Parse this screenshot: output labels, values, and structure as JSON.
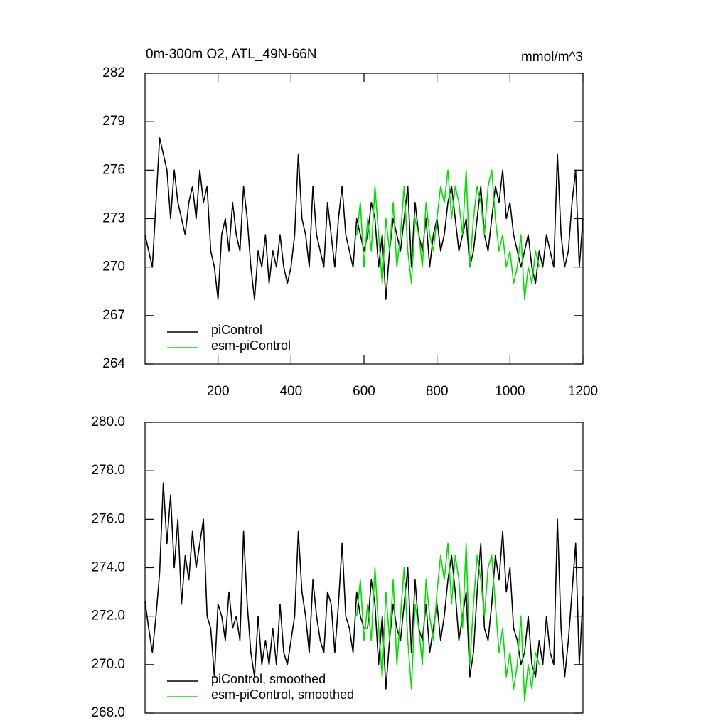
{
  "chart_data": [
    {
      "type": "line",
      "title": "0m-300m O2, ATL_49N-66N",
      "units": "mmol/m^3",
      "xlim": [
        0,
        1200
      ],
      "xticks": [
        200,
        400,
        600,
        800,
        1000,
        1200
      ],
      "ylim": [
        264,
        282
      ],
      "yticks": [
        264,
        267,
        270,
        273,
        276,
        279,
        282
      ],
      "legend": "lower left",
      "series": [
        {
          "name": "piControl",
          "color": "#000000",
          "x": [
            0,
            10,
            20,
            30,
            40,
            50,
            60,
            70,
            80,
            90,
            100,
            110,
            120,
            130,
            140,
            150,
            160,
            170,
            180,
            190,
            200,
            210,
            220,
            230,
            240,
            250,
            260,
            270,
            280,
            290,
            300,
            310,
            320,
            330,
            340,
            350,
            360,
            370,
            380,
            390,
            400,
            410,
            420,
            430,
            440,
            450,
            460,
            470,
            480,
            490,
            500,
            510,
            520,
            530,
            540,
            550,
            560,
            570,
            580,
            590,
            600,
            610,
            620,
            630,
            640,
            650,
            660,
            670,
            680,
            690,
            700,
            710,
            720,
            730,
            740,
            750,
            760,
            770,
            780,
            790,
            800,
            810,
            820,
            830,
            840,
            850,
            860,
            870,
            880,
            890,
            900,
            910,
            920,
            930,
            940,
            950,
            960,
            970,
            980,
            990,
            1000,
            1010,
            1020,
            1030,
            1040,
            1050,
            1060,
            1070,
            1080,
            1090,
            1100,
            1110,
            1120,
            1130,
            1140,
            1150,
            1160,
            1170,
            1180,
            1190,
            1200
          ],
          "values": [
            272,
            271,
            270,
            274,
            278,
            277,
            276,
            273,
            276,
            274,
            273,
            272,
            274,
            275,
            273,
            276,
            274,
            275,
            271,
            270,
            268,
            272,
            273,
            271,
            274,
            272,
            271,
            275,
            273,
            270,
            268,
            271,
            270,
            272,
            269,
            271,
            270,
            272,
            270,
            269,
            270,
            272,
            277,
            273,
            272,
            270,
            275,
            272,
            271,
            270,
            274,
            272,
            270,
            273,
            275,
            272,
            271,
            270,
            273,
            272,
            271,
            272,
            274,
            273,
            270,
            272,
            268,
            271,
            273,
            272,
            271,
            273,
            275,
            270,
            274,
            272,
            271,
            273,
            270,
            272,
            273,
            271,
            272,
            274,
            275,
            273,
            271,
            272,
            273,
            270,
            271,
            273,
            275,
            272,
            271,
            273,
            275,
            274,
            276,
            273,
            274,
            272,
            271,
            270,
            271,
            272,
            270,
            269,
            271,
            270,
            272,
            271,
            270,
            277,
            272,
            270,
            271,
            274,
            276,
            270,
            273
          ]
        },
        {
          "name": "esm-piControl",
          "color": "#00e000",
          "x": [
            580,
            590,
            600,
            610,
            620,
            630,
            640,
            650,
            660,
            670,
            680,
            690,
            700,
            710,
            720,
            730,
            740,
            750,
            760,
            770,
            780,
            790,
            800,
            810,
            820,
            830,
            840,
            850,
            860,
            870,
            880,
            890,
            900,
            910,
            920,
            930,
            940,
            950,
            960,
            970,
            980,
            990,
            1000,
            1010,
            1020,
            1030,
            1040,
            1050,
            1060,
            1070,
            1080
          ],
          "values": [
            272,
            274,
            270,
            273,
            271,
            275,
            272,
            269,
            273,
            271,
            274,
            270,
            272,
            275,
            271,
            269,
            273,
            272,
            270,
            274,
            272,
            271,
            273,
            275,
            274,
            276,
            273,
            275,
            274,
            272,
            276,
            270,
            273,
            275,
            274,
            272,
            275,
            276,
            273,
            271,
            272,
            270,
            271,
            269,
            270,
            272,
            268,
            270,
            269,
            271,
            270
          ]
        }
      ]
    },
    {
      "type": "line",
      "xlim": [
        0,
        1200
      ],
      "ylim": [
        268,
        280
      ],
      "yticks": [
        {
          "value": 268,
          "label": "268.0"
        },
        {
          "value": 270,
          "label": "270.0"
        },
        {
          "value": 272,
          "label": "272.0"
        },
        {
          "value": 274,
          "label": "274.0"
        },
        {
          "value": 276,
          "label": "276.0"
        },
        {
          "value": 278,
          "label": "278.0"
        },
        {
          "value": 280,
          "label": "280.0"
        }
      ],
      "legend": "lower left",
      "series": [
        {
          "name": "piControl, smoothed",
          "color": "#000000",
          "x": [
            0,
            10,
            20,
            30,
            40,
            50,
            60,
            70,
            80,
            90,
            100,
            110,
            120,
            130,
            140,
            150,
            160,
            170,
            180,
            190,
            200,
            210,
            220,
            230,
            240,
            250,
            260,
            270,
            280,
            290,
            300,
            310,
            320,
            330,
            340,
            350,
            360,
            370,
            380,
            390,
            400,
            410,
            420,
            430,
            440,
            450,
            460,
            470,
            480,
            490,
            500,
            510,
            520,
            530,
            540,
            550,
            560,
            570,
            580,
            590,
            600,
            610,
            620,
            630,
            640,
            650,
            660,
            670,
            680,
            690,
            700,
            710,
            720,
            730,
            740,
            750,
            760,
            770,
            780,
            790,
            800,
            810,
            820,
            830,
            840,
            850,
            860,
            870,
            880,
            890,
            900,
            910,
            920,
            930,
            940,
            950,
            960,
            970,
            980,
            990,
            1000,
            1010,
            1020,
            1030,
            1040,
            1050,
            1060,
            1070,
            1080,
            1090,
            1100,
            1110,
            1120,
            1130,
            1140,
            1150,
            1160,
            1170,
            1180,
            1190,
            1200
          ],
          "values": [
            272.6,
            271.5,
            270.5,
            272,
            273.8,
            277.5,
            275,
            277,
            274,
            276,
            272.5,
            274.5,
            273.5,
            275.5,
            274,
            275,
            276,
            272,
            271.5,
            269.5,
            272.5,
            272,
            271,
            273,
            271.5,
            272,
            271,
            275.5,
            272.5,
            270.5,
            269.5,
            272,
            270,
            271,
            270,
            271.5,
            270,
            272.5,
            270.5,
            270,
            271,
            272,
            275.5,
            273,
            272,
            270.5,
            273.5,
            272,
            271,
            270.5,
            273,
            272.5,
            270.5,
            272.5,
            275,
            272,
            271.5,
            270.5,
            273,
            272,
            271.5,
            271.5,
            273.5,
            272.5,
            270,
            272,
            269,
            271,
            272.5,
            271.5,
            271,
            272.5,
            274,
            270.5,
            273.5,
            271.5,
            271,
            272.5,
            270.5,
            271.5,
            272.5,
            271,
            272,
            273.5,
            274.5,
            273,
            271,
            272,
            273,
            269.5,
            270.5,
            273,
            275,
            271.5,
            271,
            272.5,
            274.5,
            273.5,
            275.5,
            273,
            274,
            271.5,
            271,
            270,
            270.5,
            272,
            270,
            269.5,
            271,
            270,
            272,
            270.5,
            270,
            276,
            271.5,
            269.5,
            271,
            273,
            275,
            270,
            272.8
          ]
        },
        {
          "name": "esm-piControl, smoothed",
          "color": "#00e000",
          "x": [
            580,
            590,
            600,
            610,
            620,
            630,
            640,
            650,
            660,
            670,
            680,
            690,
            700,
            710,
            720,
            730,
            740,
            750,
            760,
            770,
            780,
            790,
            800,
            810,
            820,
            830,
            840,
            850,
            860,
            870,
            880,
            890,
            900,
            910,
            920,
            930,
            940,
            950,
            960,
            970,
            980,
            990,
            1000,
            1010,
            1020,
            1030,
            1040,
            1050,
            1060,
            1070,
            1080
          ],
          "values": [
            272,
            273.5,
            271,
            272.5,
            271,
            274,
            271.5,
            269.5,
            273,
            271,
            273.5,
            270,
            272,
            274,
            271,
            269,
            272.5,
            271.5,
            270,
            273.5,
            272,
            271,
            273,
            274.5,
            273.5,
            275,
            272.5,
            274.5,
            273.5,
            271.5,
            275,
            270,
            272.5,
            274.5,
            273.5,
            272,
            274,
            274.5,
            272.5,
            270.5,
            271.5,
            269.5,
            270.5,
            269,
            270,
            272,
            268.5,
            270,
            269,
            270.5,
            270
          ]
        }
      ]
    }
  ]
}
